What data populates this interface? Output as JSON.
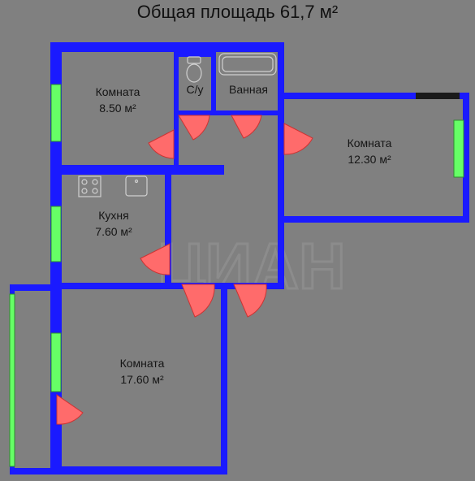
{
  "title": "Общая площадь 61,7 м²",
  "rooms": [
    {
      "name": "Комната",
      "area": "8.50 м²"
    },
    {
      "name": "С/у",
      "area": ""
    },
    {
      "name": "Ванная",
      "area": ""
    },
    {
      "name": "Комната",
      "area": "12.30 м²"
    },
    {
      "name": "Кухня",
      "area": "7.60 м²"
    },
    {
      "name": "Комната",
      "area": "17.60 м²"
    }
  ],
  "watermark": "ЦИАН",
  "colors": {
    "background": "#808080",
    "wall": "#1a1aff",
    "window": "#66ff66",
    "door": "#ff6b6b",
    "fixture": "#d0d0d0"
  }
}
